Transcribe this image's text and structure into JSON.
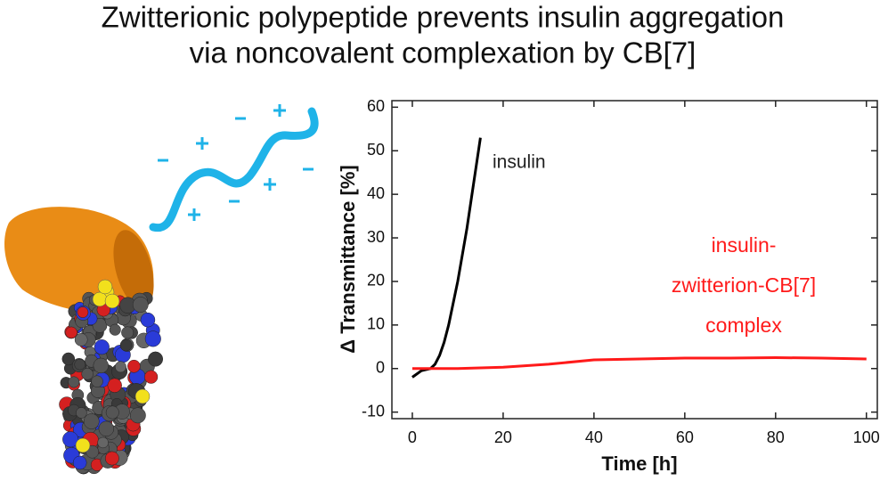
{
  "header": {
    "title_lines": [
      "Zwitterionic polypeptide prevents insulin aggregation",
      "via noncovalent complexation by CB[7]"
    ]
  },
  "chart_data": {
    "type": "line",
    "x_label": "Time [h]",
    "y_label": "Δ Transmittance [%]",
    "xlim": [
      -4.5,
      102.4
    ],
    "ylim": [
      -11.5,
      61.5
    ],
    "xticks": [
      0,
      20,
      40,
      60,
      80,
      100
    ],
    "yticks": [
      -10,
      0,
      10,
      20,
      30,
      40,
      50,
      60
    ],
    "series": [
      {
        "color": "#000000",
        "x": [
          0,
          2,
          4,
          5,
          6,
          7,
          8,
          9,
          10,
          11,
          12,
          13,
          14,
          15
        ],
        "values": [
          -2,
          -0.5,
          0,
          1,
          3,
          6,
          10,
          15,
          20,
          26,
          32,
          39,
          46,
          53
        ]
      },
      {
        "color": "#ff1a1a",
        "x": [
          0,
          10,
          20,
          30,
          40,
          50,
          60,
          70,
          80,
          90,
          100
        ],
        "values": [
          0,
          0,
          0.3,
          1,
          2,
          2.2,
          2.4,
          2.4,
          2.5,
          2.4,
          2.2
        ]
      }
    ],
    "annotations": [
      {
        "lines": [
          "insulin"
        ],
        "color": "#222222"
      },
      {
        "lines": [
          "insulin-",
          "zwitterion-CB[7]",
          "complex"
        ],
        "color": "#ff1a1a"
      }
    ]
  }
}
